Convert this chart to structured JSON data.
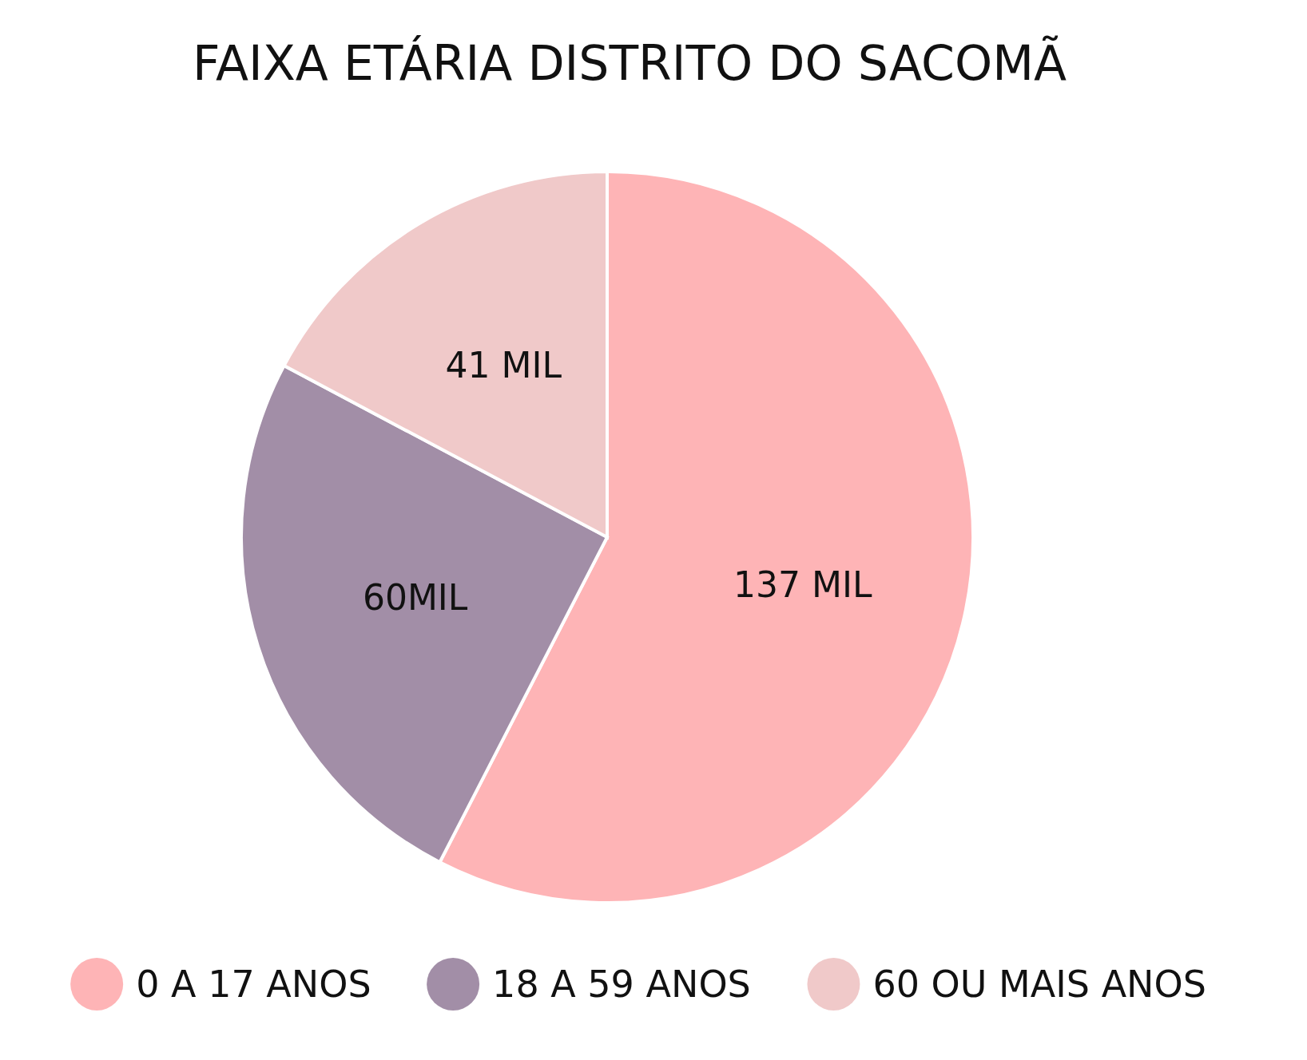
{
  "chart_data": {
    "type": "pie",
    "title": "FAIXA ETÁRIA DISTRITO DO SACOMÃ",
    "categories": [
      "0 A 17 ANOS",
      "18 A 59 ANOS",
      "60 OU MAIS ANOS"
    ],
    "values": [
      137,
      60,
      41
    ],
    "value_labels": [
      "137 MIL",
      "60MIL",
      "41 MIL"
    ],
    "colors": [
      "#feb4b6",
      "#a28ea7",
      "#f0c9c9"
    ],
    "legend": "bottom"
  }
}
